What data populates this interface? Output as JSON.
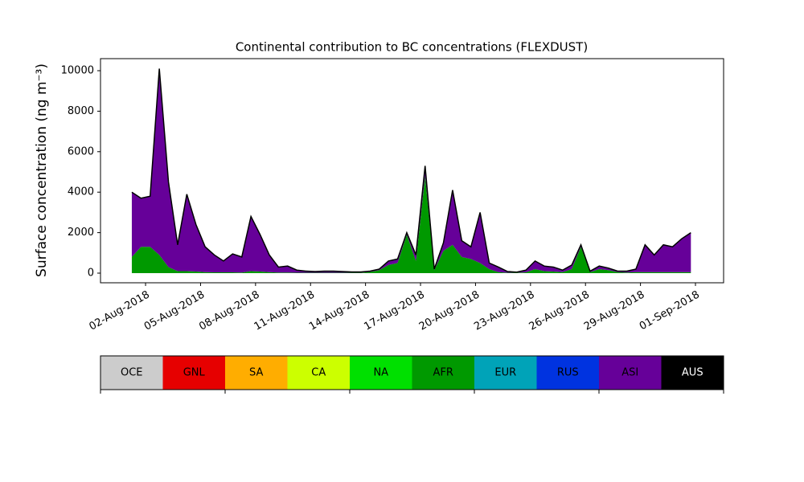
{
  "chart_data": {
    "type": "stackedarea",
    "title": "Continental contribution to BC concentrations (FLEXDUST)",
    "ylabel": "Surface concentration (ng m⁻³)",
    "x": [
      "2018-08-01T06:00",
      "2018-08-01T18:00",
      "2018-08-02T06:00",
      "2018-08-02T18:00",
      "2018-08-03T06:00",
      "2018-08-03T18:00",
      "2018-08-04T06:00",
      "2018-08-04T18:00",
      "2018-08-05T06:00",
      "2018-08-05T18:00",
      "2018-08-06T06:00",
      "2018-08-06T18:00",
      "2018-08-07T06:00",
      "2018-08-07T18:00",
      "2018-08-08T06:00",
      "2018-08-08T18:00",
      "2018-08-09T06:00",
      "2018-08-09T18:00",
      "2018-08-10T06:00",
      "2018-08-10T18:00",
      "2018-08-11T06:00",
      "2018-08-11T18:00",
      "2018-08-12T06:00",
      "2018-08-12T18:00",
      "2018-08-13T06:00",
      "2018-08-13T18:00",
      "2018-08-14T06:00",
      "2018-08-14T18:00",
      "2018-08-15T06:00",
      "2018-08-15T18:00",
      "2018-08-16T06:00",
      "2018-08-16T18:00",
      "2018-08-17T06:00",
      "2018-08-17T18:00",
      "2018-08-18T06:00",
      "2018-08-18T18:00",
      "2018-08-19T06:00",
      "2018-08-19T18:00",
      "2018-08-20T06:00",
      "2018-08-20T18:00",
      "2018-08-21T06:00",
      "2018-08-21T18:00",
      "2018-08-22T06:00",
      "2018-08-22T18:00",
      "2018-08-23T06:00",
      "2018-08-23T18:00",
      "2018-08-24T06:00",
      "2018-08-24T18:00",
      "2018-08-25T06:00",
      "2018-08-25T18:00",
      "2018-08-26T06:00",
      "2018-08-26T18:00",
      "2018-08-27T06:00",
      "2018-08-27T18:00",
      "2018-08-28T06:00",
      "2018-08-28T18:00",
      "2018-08-29T06:00",
      "2018-08-29T18:00",
      "2018-08-30T06:00",
      "2018-08-30T18:00",
      "2018-08-31T06:00",
      "2018-08-31T18:00"
    ],
    "series": [
      {
        "name": "AFR",
        "color": "#009900",
        "values": [
          800,
          1300,
          1300,
          900,
          300,
          100,
          100,
          80,
          50,
          40,
          40,
          40,
          30,
          100,
          80,
          50,
          30,
          30,
          20,
          20,
          20,
          20,
          20,
          20,
          20,
          20,
          60,
          150,
          400,
          500,
          1900,
          600,
          4800,
          150,
          1100,
          1400,
          800,
          700,
          500,
          200,
          50,
          20,
          20,
          40,
          200,
          100,
          80,
          50,
          200,
          1300,
          50,
          200,
          150,
          50,
          30,
          50,
          50,
          50,
          50,
          50,
          50,
          50
        ]
      },
      {
        "name": "ASI",
        "color": "#660099",
        "values": [
          3200,
          2400,
          2500,
          9200,
          4200,
          1300,
          3800,
          2320,
          1250,
          860,
          560,
          910,
          770,
          2700,
          1820,
          850,
          270,
          320,
          130,
          80,
          60,
          80,
          80,
          60,
          40,
          40,
          40,
          50,
          200,
          200,
          100,
          300,
          500,
          50,
          400,
          2700,
          800,
          600,
          2500,
          300,
          250,
          60,
          30,
          110,
          400,
          250,
          220,
          100,
          200,
          100,
          50,
          150,
          100,
          50,
          70,
          150,
          1350,
          850,
          1350,
          1250,
          1650,
          1950
        ]
      }
    ],
    "outline_color": "#000000",
    "xlim": [
      "2018-07-30T13:00",
      "2018-09-02T12:50"
    ],
    "xticks": [
      {
        "value": "2018-08-02T00:00",
        "label": "02-Aug-2018"
      },
      {
        "value": "2018-08-05T00:00",
        "label": "05-Aug-2018"
      },
      {
        "value": "2018-08-08T00:00",
        "label": "08-Aug-2018"
      },
      {
        "value": "2018-08-11T00:00",
        "label": "11-Aug-2018"
      },
      {
        "value": "2018-08-14T00:00",
        "label": "14-Aug-2018"
      },
      {
        "value": "2018-08-17T00:00",
        "label": "17-Aug-2018"
      },
      {
        "value": "2018-08-20T00:00",
        "label": "20-Aug-2018"
      },
      {
        "value": "2018-08-23T00:00",
        "label": "23-Aug-2018"
      },
      {
        "value": "2018-08-26T00:00",
        "label": "26-Aug-2018"
      },
      {
        "value": "2018-08-29T00:00",
        "label": "29-Aug-2018"
      },
      {
        "value": "2018-09-01T00:00",
        "label": "01-Sep-2018"
      }
    ],
    "ylim": [
      -476,
      10595
    ],
    "yticks": [
      0,
      2000,
      4000,
      6000,
      8000,
      10000
    ],
    "grid": false,
    "colorbar": {
      "labels": [
        "OCE",
        "GNL",
        "SA",
        "CA",
        "NA",
        "AFR",
        "EUR",
        "RUS",
        "ASI",
        "AUS"
      ],
      "colors": [
        "#cccccc",
        "#e60000",
        "#ffad00",
        "#ccff00",
        "#00e000",
        "#009900",
        "#00a3b8",
        "#0033e0",
        "#660099",
        "#000000"
      ]
    }
  }
}
